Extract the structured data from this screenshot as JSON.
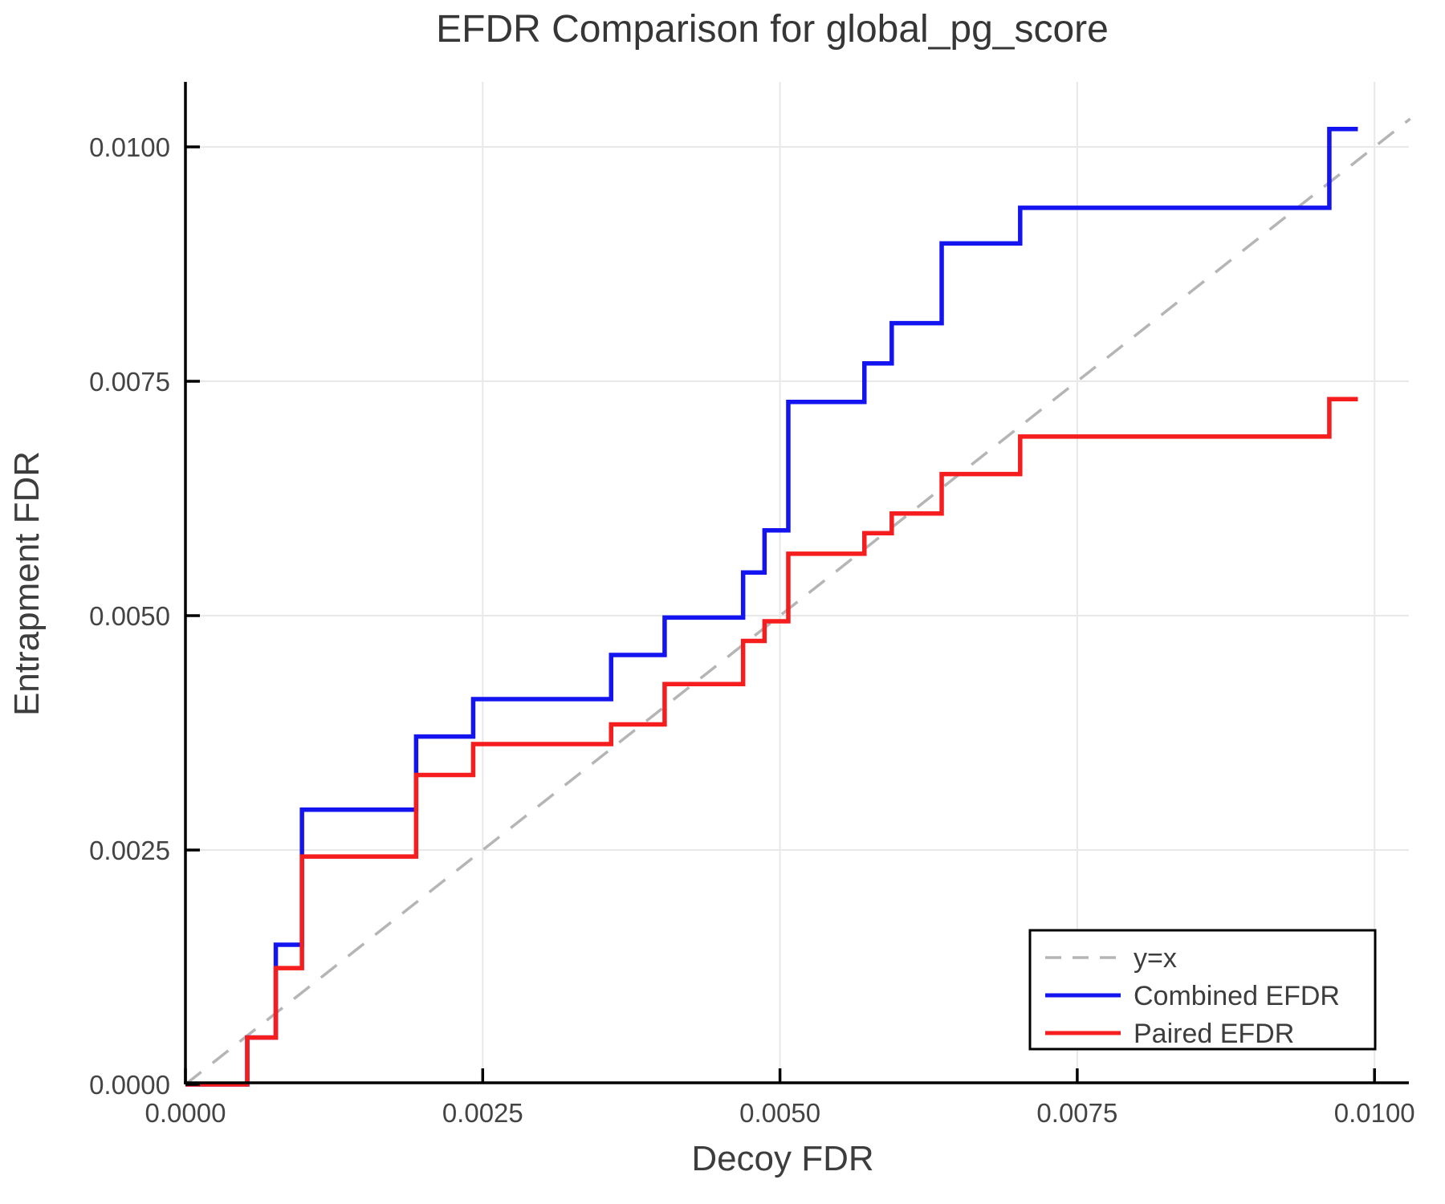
{
  "page": {
    "background": "#ffffff"
  },
  "chart_data": {
    "type": "line",
    "line_mode": "step",
    "title": "EFDR Comparison for global_pg_score",
    "xlabel": "Decoy FDR",
    "ylabel": "Entrapment FDR",
    "xlim": [
      0,
      0.0103
    ],
    "ylim": [
      0,
      0.0107
    ],
    "grid": true,
    "xticks": {
      "values": [
        0,
        0.0025,
        0.005,
        0.0075,
        0.01
      ],
      "labels": [
        "0.0000",
        "0.0025",
        "0.0050",
        "0.0075",
        "0.0100"
      ]
    },
    "yticks": {
      "values": [
        0,
        0.0025,
        0.005,
        0.0075,
        0.01
      ],
      "labels": [
        "0.0000",
        "0.0025",
        "0.0050",
        "0.0075",
        "0.0100"
      ]
    },
    "reference_line": {
      "label": "y=x",
      "style": "dashed",
      "color": "#b5b5b5",
      "from": [
        0,
        0
      ],
      "to": [
        0.0103,
        0.0103
      ]
    },
    "series": [
      {
        "name": "Combined EFDR",
        "color": "#1414f0",
        "style": "solid",
        "step_x": [
          0,
          0.00052,
          0.00076,
          0.00098,
          0.00194,
          0.00242,
          0.00358,
          0.00403,
          0.00469,
          0.00487,
          0.00507,
          0.00571,
          0.00594,
          0.00636,
          0.00702,
          0.00962
        ],
        "step_y": [
          0,
          0.0005,
          0.00149,
          0.00293,
          0.00371,
          0.00411,
          0.00458,
          0.00498,
          0.00546,
          0.00591,
          0.00728,
          0.00769,
          0.00812,
          0.00897,
          0.00935,
          0.01019
        ],
        "x_end": 0.00986
      },
      {
        "name": "Paired EFDR",
        "color": "#f51d1d",
        "style": "solid",
        "step_x": [
          0,
          0.00052,
          0.00076,
          0.00098,
          0.00194,
          0.00242,
          0.00358,
          0.00403,
          0.00469,
          0.00487,
          0.00507,
          0.00571,
          0.00594,
          0.00636,
          0.00702,
          0.00962
        ],
        "step_y": [
          0,
          0.0005,
          0.00124,
          0.00243,
          0.0033,
          0.00363,
          0.00384,
          0.00427,
          0.00473,
          0.00494,
          0.00566,
          0.00588,
          0.00609,
          0.00651,
          0.00691,
          0.00731
        ],
        "x_end": 0.00986
      }
    ],
    "legend": {
      "position": "lower-right",
      "entries": [
        "y=x",
        "Combined EFDR",
        "Paired EFDR"
      ]
    }
  },
  "style": {
    "axis_color": "#000000",
    "grid_color": "#e8e8e8",
    "dash_color": "#b5b5b5",
    "tick_text_color": "#444444",
    "title_color": "#363636",
    "legend_border_color": "#000000",
    "legend_background": "#ffffff"
  }
}
